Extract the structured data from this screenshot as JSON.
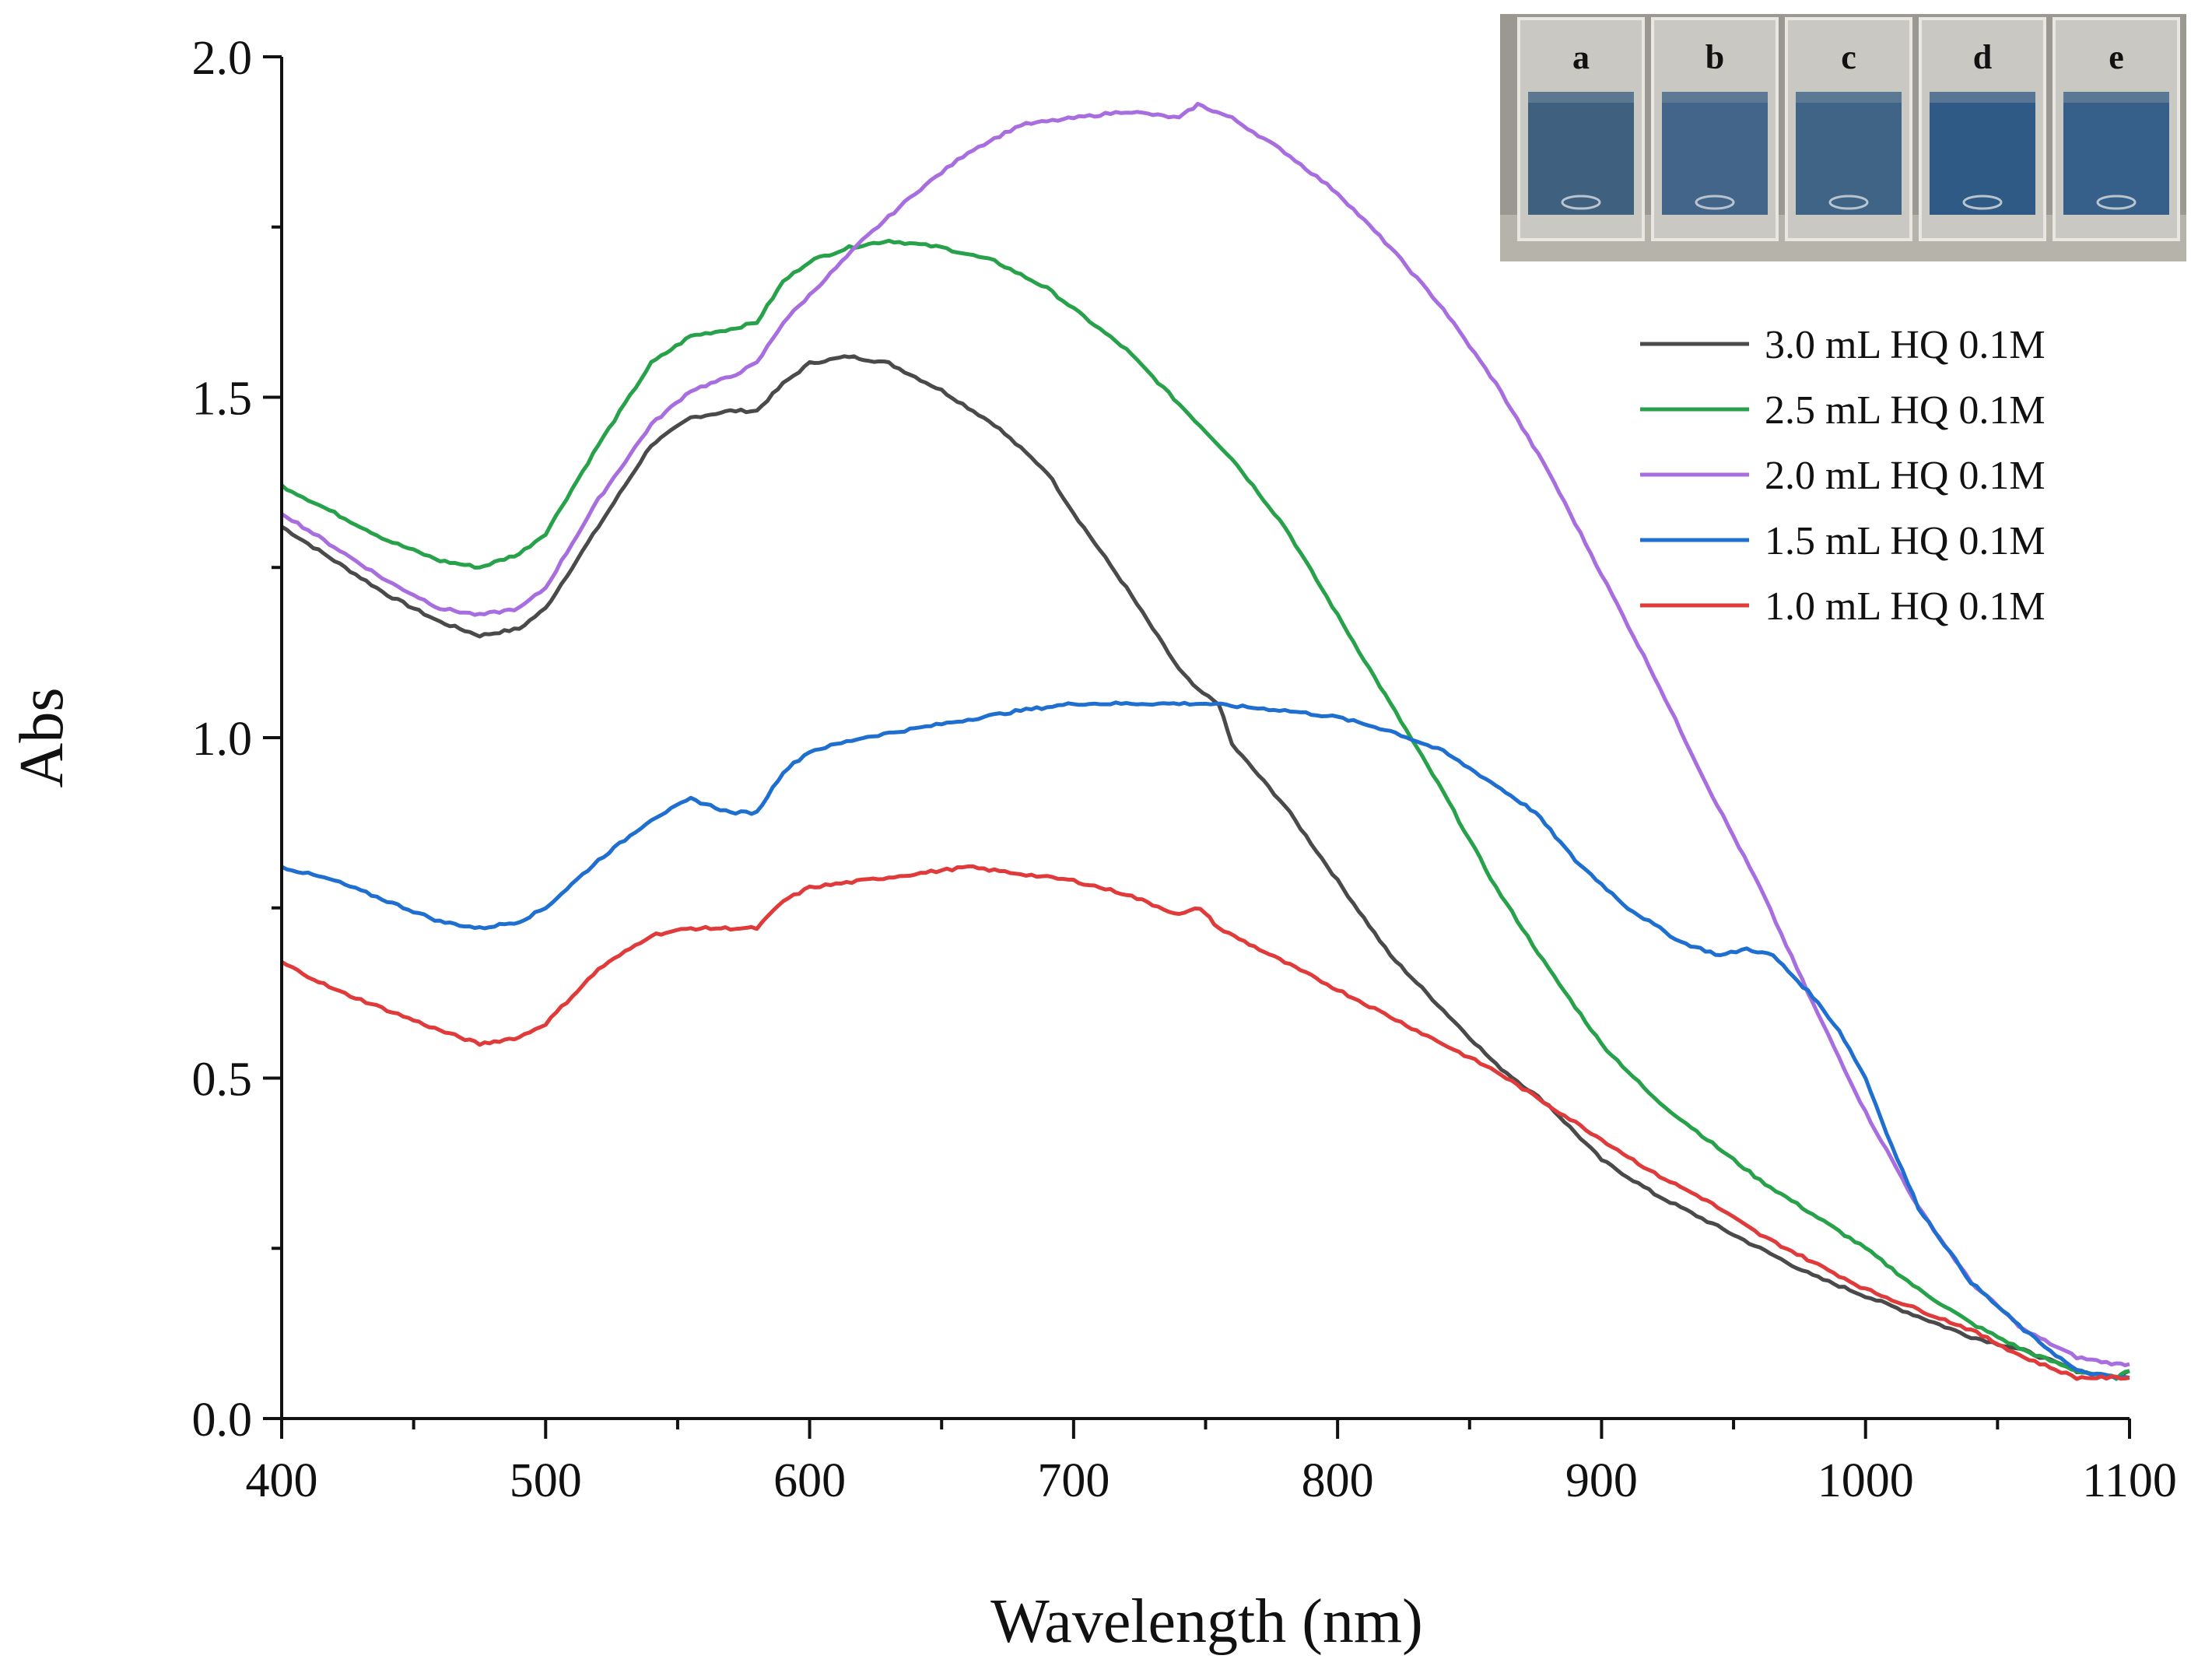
{
  "chart_data": {
    "type": "line",
    "title": "",
    "xlabel": "Wavelength (nm)",
    "ylabel": "Abs",
    "xlim": [
      400,
      1100
    ],
    "ylim": [
      0.0,
      2.0
    ],
    "x_ticks": [
      400,
      500,
      600,
      700,
      800,
      900,
      1000,
      1100
    ],
    "x_tick_labels": [
      "400",
      "500",
      "600",
      "700",
      "800",
      "900",
      "1000",
      "1100"
    ],
    "y_ticks": [
      0.0,
      0.5,
      1.0,
      1.5,
      2.0
    ],
    "y_tick_labels": [
      "0.0",
      "0.5",
      "1.0",
      "1.5",
      "2.0"
    ],
    "grid": false,
    "legend_position": "top-right",
    "series": [
      {
        "name": "3.0 mL HQ 0.1M",
        "color": "#4a4a4a",
        "points": [
          [
            400,
            1.31
          ],
          [
            420,
            1.26
          ],
          [
            440,
            1.21
          ],
          [
            460,
            1.17
          ],
          [
            475,
            1.15
          ],
          [
            490,
            1.16
          ],
          [
            500,
            1.19
          ],
          [
            520,
            1.31
          ],
          [
            540,
            1.43
          ],
          [
            555,
            1.47
          ],
          [
            570,
            1.48
          ],
          [
            580,
            1.48
          ],
          [
            590,
            1.52
          ],
          [
            600,
            1.55
          ],
          [
            615,
            1.56
          ],
          [
            630,
            1.55
          ],
          [
            650,
            1.51
          ],
          [
            670,
            1.46
          ],
          [
            690,
            1.39
          ],
          [
            700,
            1.33
          ],
          [
            720,
            1.22
          ],
          [
            740,
            1.1
          ],
          [
            747,
            1.07
          ],
          [
            755,
            1.05
          ],
          [
            760,
            0.99
          ],
          [
            780,
            0.9
          ],
          [
            800,
            0.79
          ],
          [
            820,
            0.68
          ],
          [
            840,
            0.6
          ],
          [
            860,
            0.52
          ],
          [
            880,
            0.46
          ],
          [
            900,
            0.38
          ],
          [
            920,
            0.33
          ],
          [
            940,
            0.29
          ],
          [
            960,
            0.25
          ],
          [
            980,
            0.21
          ],
          [
            1000,
            0.18
          ],
          [
            1020,
            0.15
          ],
          [
            1040,
            0.12
          ],
          [
            1060,
            0.1
          ],
          [
            1080,
            0.07
          ],
          [
            1095,
            0.06
          ],
          [
            1100,
            0.07
          ]
        ]
      },
      {
        "name": "2.5 mL HQ 0.1M",
        "color": "#27a24a",
        "points": [
          [
            400,
            1.37
          ],
          [
            420,
            1.33
          ],
          [
            440,
            1.29
          ],
          [
            460,
            1.26
          ],
          [
            475,
            1.25
          ],
          [
            490,
            1.27
          ],
          [
            500,
            1.3
          ],
          [
            520,
            1.43
          ],
          [
            540,
            1.55
          ],
          [
            555,
            1.59
          ],
          [
            570,
            1.6
          ],
          [
            580,
            1.61
          ],
          [
            590,
            1.67
          ],
          [
            600,
            1.7
          ],
          [
            615,
            1.72
          ],
          [
            630,
            1.73
          ],
          [
            650,
            1.72
          ],
          [
            670,
            1.7
          ],
          [
            690,
            1.66
          ],
          [
            700,
            1.63
          ],
          [
            720,
            1.57
          ],
          [
            740,
            1.49
          ],
          [
            760,
            1.41
          ],
          [
            780,
            1.31
          ],
          [
            800,
            1.18
          ],
          [
            820,
            1.05
          ],
          [
            840,
            0.92
          ],
          [
            860,
            0.78
          ],
          [
            880,
            0.66
          ],
          [
            900,
            0.55
          ],
          [
            920,
            0.47
          ],
          [
            940,
            0.41
          ],
          [
            960,
            0.35
          ],
          [
            980,
            0.3
          ],
          [
            1000,
            0.25
          ],
          [
            1020,
            0.19
          ],
          [
            1040,
            0.14
          ],
          [
            1060,
            0.1
          ],
          [
            1080,
            0.07
          ],
          [
            1095,
            0.06
          ],
          [
            1100,
            0.07
          ]
        ]
      },
      {
        "name": "2.0 mL HQ 0.1M",
        "color": "#a86ee0",
        "points": [
          [
            400,
            1.33
          ],
          [
            420,
            1.28
          ],
          [
            440,
            1.23
          ],
          [
            460,
            1.19
          ],
          [
            475,
            1.18
          ],
          [
            490,
            1.19
          ],
          [
            500,
            1.22
          ],
          [
            520,
            1.35
          ],
          [
            540,
            1.46
          ],
          [
            555,
            1.51
          ],
          [
            570,
            1.53
          ],
          [
            580,
            1.55
          ],
          [
            590,
            1.61
          ],
          [
            600,
            1.65
          ],
          [
            620,
            1.73
          ],
          [
            640,
            1.8
          ],
          [
            660,
            1.86
          ],
          [
            680,
            1.9
          ],
          [
            700,
            1.91
          ],
          [
            720,
            1.92
          ],
          [
            740,
            1.91
          ],
          [
            747,
            1.93
          ],
          [
            760,
            1.91
          ],
          [
            780,
            1.86
          ],
          [
            800,
            1.8
          ],
          [
            820,
            1.72
          ],
          [
            840,
            1.63
          ],
          [
            860,
            1.52
          ],
          [
            880,
            1.39
          ],
          [
            900,
            1.24
          ],
          [
            920,
            1.09
          ],
          [
            940,
            0.93
          ],
          [
            960,
            0.78
          ],
          [
            980,
            0.61
          ],
          [
            1000,
            0.45
          ],
          [
            1020,
            0.31
          ],
          [
            1040,
            0.2
          ],
          [
            1060,
            0.13
          ],
          [
            1080,
            0.09
          ],
          [
            1095,
            0.08
          ],
          [
            1100,
            0.08
          ]
        ]
      },
      {
        "name": "1.5 mL HQ 0.1M",
        "color": "#1f6fd0",
        "points": [
          [
            400,
            0.81
          ],
          [
            420,
            0.79
          ],
          [
            440,
            0.76
          ],
          [
            460,
            0.73
          ],
          [
            475,
            0.72
          ],
          [
            490,
            0.73
          ],
          [
            500,
            0.75
          ],
          [
            520,
            0.82
          ],
          [
            540,
            0.88
          ],
          [
            555,
            0.91
          ],
          [
            570,
            0.89
          ],
          [
            580,
            0.89
          ],
          [
            590,
            0.95
          ],
          [
            600,
            0.98
          ],
          [
            620,
            1.0
          ],
          [
            650,
            1.02
          ],
          [
            680,
            1.04
          ],
          [
            700,
            1.05
          ],
          [
            720,
            1.05
          ],
          [
            750,
            1.05
          ],
          [
            780,
            1.04
          ],
          [
            800,
            1.03
          ],
          [
            820,
            1.01
          ],
          [
            840,
            0.98
          ],
          [
            860,
            0.93
          ],
          [
            875,
            0.89
          ],
          [
            890,
            0.82
          ],
          [
            910,
            0.75
          ],
          [
            930,
            0.7
          ],
          [
            945,
            0.68
          ],
          [
            955,
            0.69
          ],
          [
            965,
            0.68
          ],
          [
            980,
            0.62
          ],
          [
            990,
            0.57
          ],
          [
            1000,
            0.5
          ],
          [
            1010,
            0.4
          ],
          [
            1020,
            0.31
          ],
          [
            1040,
            0.2
          ],
          [
            1060,
            0.13
          ],
          [
            1080,
            0.07
          ],
          [
            1095,
            0.06
          ],
          [
            1100,
            0.06
          ]
        ]
      },
      {
        "name": "1.0 mL HQ 0.1M",
        "color": "#e03a3a",
        "points": [
          [
            400,
            0.67
          ],
          [
            420,
            0.63
          ],
          [
            440,
            0.6
          ],
          [
            460,
            0.57
          ],
          [
            475,
            0.55
          ],
          [
            490,
            0.56
          ],
          [
            500,
            0.58
          ],
          [
            520,
            0.66
          ],
          [
            540,
            0.71
          ],
          [
            555,
            0.72
          ],
          [
            570,
            0.72
          ],
          [
            580,
            0.72
          ],
          [
            590,
            0.76
          ],
          [
            600,
            0.78
          ],
          [
            620,
            0.79
          ],
          [
            640,
            0.8
          ],
          [
            660,
            0.81
          ],
          [
            680,
            0.8
          ],
          [
            700,
            0.79
          ],
          [
            720,
            0.77
          ],
          [
            740,
            0.74
          ],
          [
            748,
            0.75
          ],
          [
            755,
            0.72
          ],
          [
            780,
            0.67
          ],
          [
            800,
            0.63
          ],
          [
            820,
            0.59
          ],
          [
            840,
            0.55
          ],
          [
            860,
            0.51
          ],
          [
            880,
            0.46
          ],
          [
            900,
            0.41
          ],
          [
            920,
            0.36
          ],
          [
            940,
            0.32
          ],
          [
            960,
            0.27
          ],
          [
            980,
            0.23
          ],
          [
            1000,
            0.19
          ],
          [
            1020,
            0.16
          ],
          [
            1040,
            0.13
          ],
          [
            1060,
            0.09
          ],
          [
            1080,
            0.06
          ],
          [
            1095,
            0.06
          ],
          [
            1100,
            0.06
          ]
        ]
      }
    ]
  },
  "inset": {
    "description_labels": [
      "a",
      "b",
      "c",
      "d",
      "e"
    ]
  },
  "colors": {
    "axis": "#111111",
    "inset_bg": "#9a9890",
    "cuvette_glass": "#c9c8c2",
    "solution": "#3b5c80"
  }
}
